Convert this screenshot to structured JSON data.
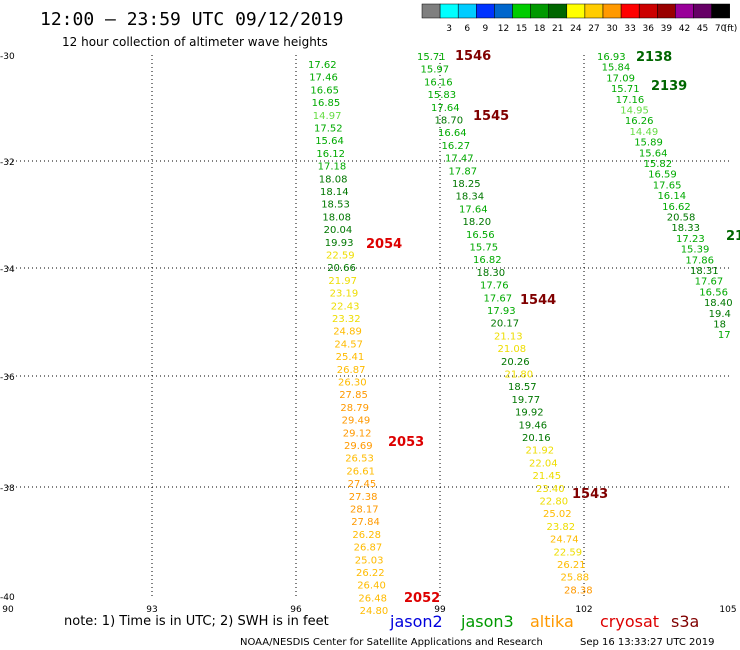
{
  "header": {
    "title": "12:00 — 23:59 UTC 09/12/2019",
    "subtitle": "12 hour collection of altimeter wave heights"
  },
  "color_scale": {
    "unit": "(ft)",
    "bins": [
      {
        "label": "",
        "color": "#7f7f7f"
      },
      {
        "label": "3",
        "color": "#00ffff"
      },
      {
        "label": "6",
        "color": "#00ccff"
      },
      {
        "label": "9",
        "color": "#0033ff"
      },
      {
        "label": "12",
        "color": "#0066cc"
      },
      {
        "label": "15",
        "color": "#00cc00"
      },
      {
        "label": "18",
        "color": "#009900"
      },
      {
        "label": "21",
        "color": "#006600"
      },
      {
        "label": "24",
        "color": "#ffff00"
      },
      {
        "label": "27",
        "color": "#ffcc00"
      },
      {
        "label": "30",
        "color": "#ff9900"
      },
      {
        "label": "33",
        "color": "#ff0000"
      },
      {
        "label": "36",
        "color": "#cc0000"
      },
      {
        "label": "39",
        "color": "#990000"
      },
      {
        "label": "42",
        "color": "#990099"
      },
      {
        "label": "45",
        "color": "#660066"
      },
      {
        "label": "70",
        "color": "#000000"
      }
    ]
  },
  "axes": {
    "x_ticks": [
      "90",
      "93",
      "96",
      "99",
      "102",
      "105"
    ],
    "y_ticks": [
      "-30",
      "-32",
      "-34",
      "-36",
      "-38",
      "-40"
    ]
  },
  "tracks": [
    {
      "values": [
        "17.62",
        "17.46",
        "16.65",
        "16.85",
        "14.97",
        "17.52",
        "15.64",
        "16.12",
        "17.18",
        "18.08",
        "18.14",
        "18.53",
        "18.08",
        "20.04",
        "19.93",
        "22.59",
        "20.66",
        "21.97",
        "23.19",
        "22.43",
        "23.32",
        "24.89",
        "24.57",
        "25.41",
        "26.87",
        "26.30",
        "27.85",
        "28.79",
        "29.49",
        "29.12",
        "29.69",
        "26.53",
        "26.61",
        "27.45",
        "27.38",
        "28.17",
        "27.84",
        "26.28",
        "26.87",
        "25.03",
        "26.22",
        "26.40",
        "26.48",
        "24.80"
      ]
    },
    {
      "values": [
        "15.71",
        "15.97",
        "16.16",
        "15.83",
        "17.64",
        "18.70",
        "16.64",
        "16.27",
        "17.47",
        "17.87",
        "18.25",
        "18.34",
        "17.64",
        "18.20",
        "16.56",
        "15.75",
        "16.82",
        "18.30",
        "17.76",
        "17.67",
        "17.93",
        "20.17",
        "21.13",
        "21.08",
        "20.26",
        "21.80",
        "18.57",
        "19.77",
        "19.92",
        "19.46",
        "20.16",
        "21.92",
        "22.04",
        "21.45",
        "23.40",
        "22.80",
        "25.02",
        "23.82",
        "24.74",
        "22.59",
        "26.21",
        "25.88",
        "28.38"
      ]
    },
    {
      "values": [
        "16.93",
        "15.84",
        "17.09",
        "15.71",
        "17.16",
        "14.95",
        "16.26",
        "14.49",
        "15.89",
        "15.64",
        "15.82",
        "16.59",
        "17.65",
        "16.14",
        "16.62",
        "20.58",
        "18.33",
        "17.23",
        "15.39",
        "17.86",
        "18.31",
        "17.67",
        "16.56",
        "18.40",
        "19.4",
        "18",
        "17"
      ]
    }
  ],
  "labels": [
    {
      "text": "1546",
      "color": "#800000"
    },
    {
      "text": "1545",
      "color": "#800000"
    },
    {
      "text": "1544",
      "color": "#800000"
    },
    {
      "text": "1543",
      "color": "#800000"
    },
    {
      "text": "2054",
      "color": "#dd0000"
    },
    {
      "text": "2053",
      "color": "#dd0000"
    },
    {
      "text": "2052",
      "color": "#dd0000"
    },
    {
      "text": "2138",
      "color": "#006600"
    },
    {
      "text": "2139",
      "color": "#006600"
    },
    {
      "text": "21",
      "color": "#006600"
    }
  ],
  "footer": {
    "note": "note: 1) Time is in UTC; 2) SWH is in feet",
    "satellites": [
      {
        "text": "jason2",
        "color": "#0000dd"
      },
      {
        "text": "jason3",
        "color": "#009900"
      },
      {
        "text": "altika",
        "color": "#ff9900"
      },
      {
        "text": "cryosat",
        "color": "#dd0000"
      },
      {
        "text": "s3a",
        "color": "#800000"
      }
    ],
    "credit": "NOAA/NESDIS Center for Satellite Applications and Research",
    "timestamp": "Sep 16 13:33:27 UTC 2019"
  }
}
